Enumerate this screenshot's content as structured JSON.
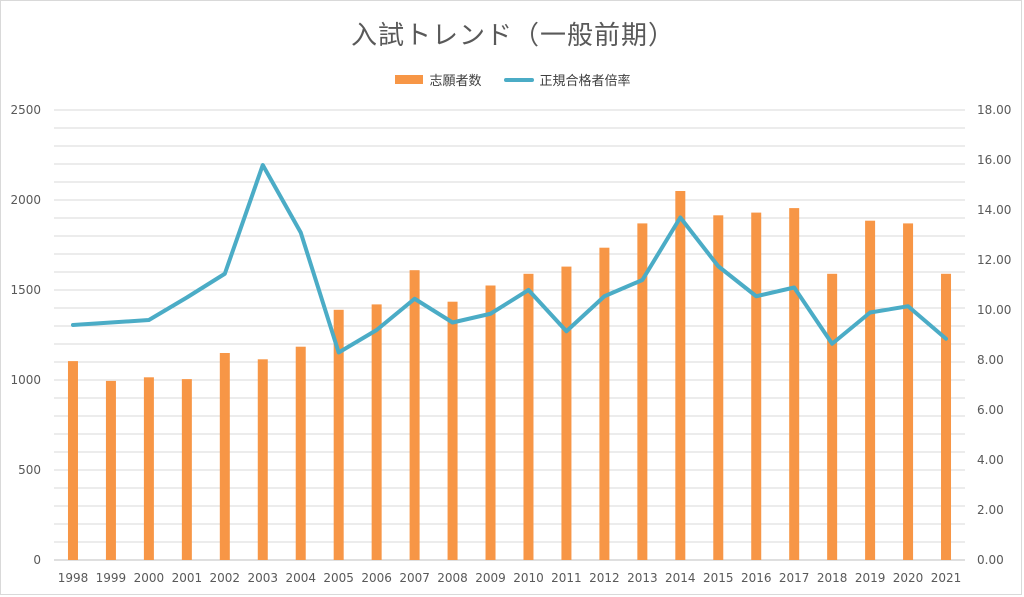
{
  "colors": {
    "bar": "#F79646",
    "line": "#4BACC6",
    "grid": "#d9d9d9",
    "axis": "#bfbfbf",
    "text": "#595959"
  },
  "chart_data": {
    "type": "bar",
    "title": "入試トレンド（一般前期）",
    "categories": [
      "1998",
      "1999",
      "2000",
      "2001",
      "2002",
      "2003",
      "2004",
      "2005",
      "2006",
      "2007",
      "2008",
      "2009",
      "2010",
      "2011",
      "2012",
      "2013",
      "2014",
      "2015",
      "2016",
      "2017",
      "2018",
      "2019",
      "2020",
      "2021"
    ],
    "series": [
      {
        "name": "志願者数",
        "type": "bar",
        "axis": "left",
        "values": [
          1105,
          995,
          1015,
          1005,
          1150,
          1115,
          1185,
          1390,
          1420,
          1610,
          1435,
          1525,
          1590,
          1630,
          1735,
          1870,
          2050,
          1915,
          1930,
          1955,
          1590,
          1885,
          1870,
          1590
        ]
      },
      {
        "name": "正規合格者倍率",
        "type": "line",
        "axis": "right",
        "values": [
          9.4,
          9.5,
          9.6,
          10.5,
          11.45,
          15.8,
          13.1,
          8.3,
          9.2,
          10.45,
          9.5,
          9.85,
          10.8,
          9.15,
          10.55,
          11.2,
          13.7,
          11.75,
          10.55,
          10.9,
          8.65,
          9.9,
          10.15,
          8.85
        ]
      }
    ],
    "y_left": {
      "min": 0,
      "max": 2500,
      "ticks": [
        "0",
        "500",
        "1000",
        "1500",
        "2000",
        "2500"
      ]
    },
    "y_right": {
      "min": 0,
      "max": 18,
      "ticks": [
        "0.00",
        "2.00",
        "4.00",
        "6.00",
        "8.00",
        "10.00",
        "12.00",
        "14.00",
        "16.00",
        "18.00"
      ]
    },
    "legend_position": "top-center",
    "grid": true
  }
}
